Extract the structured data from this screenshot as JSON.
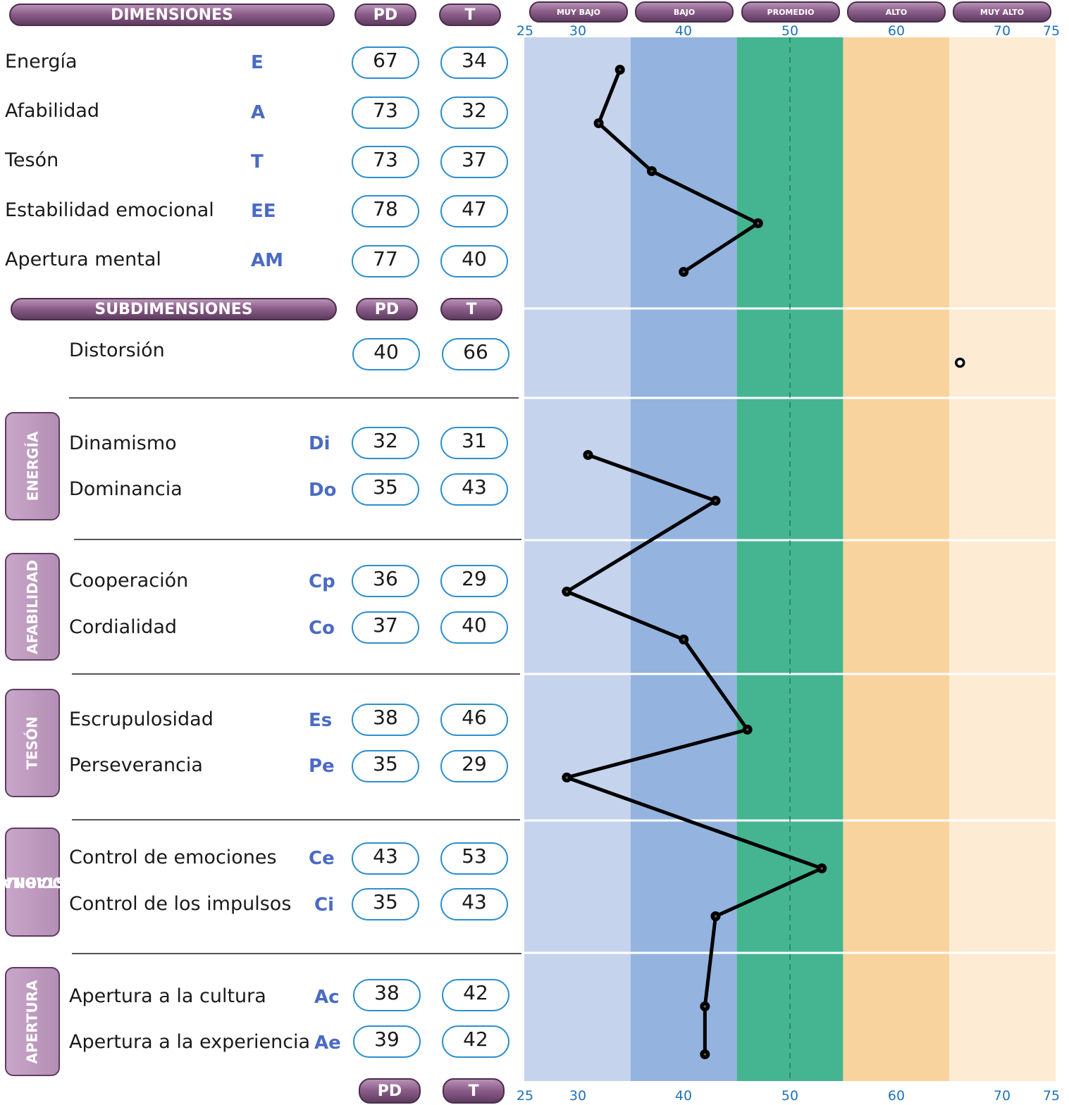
{
  "headers": {
    "dimensiones": "DIMENSIONES",
    "subdimensiones": "SUBDIMENSIONES",
    "pd": "PD",
    "t": "T"
  },
  "bands": [
    "MUY BAJO",
    "BAJO",
    "PROMEDIO",
    "ALTO",
    "MUY ALTO"
  ],
  "ticks": [
    "25",
    "30",
    "40",
    "50",
    "60",
    "70",
    "75"
  ],
  "dimensions": [
    {
      "label": "Energía",
      "abbr": "E",
      "pd": "67",
      "t": "34"
    },
    {
      "label": "Afabilidad",
      "abbr": "A",
      "pd": "73",
      "t": "32"
    },
    {
      "label": "Tesón",
      "abbr": "T",
      "pd": "73",
      "t": "37"
    },
    {
      "label": "Estabilidad emocional",
      "abbr": "EE",
      "pd": "78",
      "t": "47"
    },
    {
      "label": "Apertura mental",
      "abbr": "AM",
      "pd": "77",
      "t": "40"
    }
  ],
  "distorsion": {
    "label": "Distorsión",
    "pd": "40",
    "t": "66"
  },
  "groups": [
    {
      "title": "ENERGÍA",
      "items": [
        {
          "label": "Dinamismo",
          "abbr": "Di",
          "pd": "32",
          "t": "31"
        },
        {
          "label": "Dominancia",
          "abbr": "Do",
          "pd": "35",
          "t": "43"
        }
      ]
    },
    {
      "title": "AFABILIDAD",
      "items": [
        {
          "label": "Cooperación",
          "abbr": "Cp",
          "pd": "36",
          "t": "29"
        },
        {
          "label": "Cordialidad",
          "abbr": "Co",
          "pd": "37",
          "t": "40"
        }
      ]
    },
    {
      "title": "TESÓN",
      "items": [
        {
          "label": "Escrupulosidad",
          "abbr": "Es",
          "pd": "38",
          "t": "46"
        },
        {
          "label": "Perseverancia",
          "abbr": "Pe",
          "pd": "35",
          "t": "29"
        }
      ]
    },
    {
      "title": "ESTABILIDAD EMOCIONAL",
      "title_line1": "ESTABILIDAD",
      "title_line2": "EMOCIONAL",
      "items": [
        {
          "label": "Control de emociones",
          "abbr": "Ce",
          "pd": "43",
          "t": "53"
        },
        {
          "label": "Control de los impulsos",
          "abbr": "Ci",
          "pd": "35",
          "t": "43"
        }
      ]
    },
    {
      "title": "APERTURA",
      "items": [
        {
          "label": "Apertura a la cultura",
          "abbr": "Ac",
          "pd": "38",
          "t": "42"
        },
        {
          "label": "Apertura a la experiencia",
          "abbr": "Ae",
          "pd": "39",
          "t": "42"
        }
      ]
    }
  ],
  "colors": {
    "muy_bajo": "#c5d4ec",
    "bajo": "#94b4df",
    "promedio": "#44b590",
    "alto": "#f9d39e",
    "muy_alto": "#fdebd3",
    "line": "#000000",
    "accent": "#4a6bc4"
  },
  "chart_data": {
    "type": "line",
    "xlim": [
      25,
      75
    ],
    "xticks": [
      25,
      30,
      40,
      50,
      60,
      70,
      75
    ],
    "bands": [
      {
        "name": "MUY BAJO",
        "range": [
          25,
          35
        ]
      },
      {
        "name": "BAJO",
        "range": [
          35,
          45
        ]
      },
      {
        "name": "PROMEDIO",
        "range": [
          45,
          55
        ]
      },
      {
        "name": "ALTO",
        "range": [
          55,
          65
        ]
      },
      {
        "name": "MUY ALTO",
        "range": [
          65,
          75
        ]
      }
    ],
    "reference_line": 50,
    "series": [
      {
        "categories": [
          "E",
          "A",
          "T",
          "EE",
          "AM"
        ],
        "values": [
          34,
          32,
          37,
          47,
          40
        ]
      },
      {
        "categories": [
          "Distorsión"
        ],
        "values": [
          66
        ]
      },
      {
        "categories": [
          "Di",
          "Do",
          "Cp",
          "Co",
          "Es",
          "Pe",
          "Ce",
          "Ci",
          "Ac",
          "Ae"
        ],
        "values": [
          31,
          43,
          29,
          40,
          46,
          29,
          53,
          43,
          42,
          42
        ]
      }
    ]
  }
}
